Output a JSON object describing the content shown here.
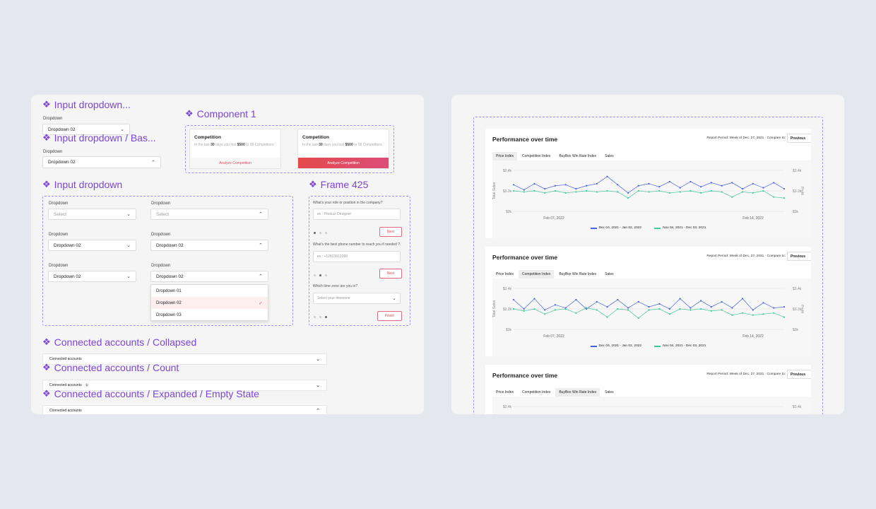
{
  "left_panel": {
    "sections": {
      "input_dropdown_collapsed": {
        "title": "Input dropdown...",
        "label": "Dropdown",
        "value": "Dropdown 02"
      },
      "input_dropdown_base": {
        "title": "Input dropdown / Bas...",
        "label": "Dropdown",
        "value": "Dropdown 02"
      },
      "component1": {
        "title": "Component 1",
        "cards": [
          {
            "title": "Competition",
            "pre": "In the last",
            "days": "30",
            "mid": "days you lost",
            "amount": "$500",
            "post": "to 08 Competitors",
            "button": "Analyze Competition"
          },
          {
            "title": "Competition",
            "pre": "In the last",
            "days": "30",
            "mid": "days you lost",
            "amount": "$500",
            "post": "to 08 Competitors",
            "button": "Analyze Competition"
          }
        ]
      },
      "input_dropdown": {
        "title": "Input dropdown",
        "label": "Dropdown",
        "placeholder": "Select",
        "value": "Dropdown 02",
        "options": [
          "Dropdown 01",
          "Dropdown 02",
          "Dropdown 03"
        ]
      },
      "frame425": {
        "title": "Frame 425",
        "q1": "What's your role or position in the company?",
        "q1_placeholder": "ex : Product Designer",
        "q2": "What's the best phone number to reach you if needed ?",
        "q2_placeholder": "ex : +12823912399",
        "q3": "Which time zone are you in?",
        "q3_placeholder": "Select your timezone",
        "next": "Next",
        "finish": "Finish"
      },
      "connected_collapsed": {
        "title": "Connected accounts / Collapsed",
        "label": "Connected accounts"
      },
      "connected_count": {
        "title": "Connected accounts / Count",
        "label": "Connected accounts",
        "count": "1"
      },
      "connected_expanded": {
        "title": "Connected accounts / Expanded / Empty State",
        "label": "Connected accounts"
      }
    }
  },
  "right_panel": {
    "common": {
      "title": "Performance over time",
      "report_period": "Report Period: Week of Dec. 27, 2021 · Compare to:",
      "previous": "Previous",
      "tabs": [
        "Price Index",
        "Competition Index",
        "BuyBox Win Rate Index",
        "Sales"
      ],
      "y_left_label": "Total Sales",
      "y_right_label": "Profit",
      "y_left_ticks": [
        "$3.4k",
        "$3.2k",
        "$3k"
      ],
      "y_right_ticks": [
        "$3.4k",
        "$3.2k",
        "$3k"
      ],
      "x_ticks": [
        "Feb 07, 2022",
        "Feb 14, 2022"
      ],
      "series1_name": "Dec 04, 2021 - Jan 02, 2022",
      "series2_name": "Nov 04, 2021 - Dec 03, 2021",
      "colors": {
        "series1": "#4a63d8",
        "series2": "#45c79a"
      }
    },
    "charts": [
      {
        "active_tab": 0
      },
      {
        "active_tab": 1
      },
      {
        "active_tab": 2
      }
    ]
  },
  "chart_data": [
    {
      "type": "line",
      "ylim": [
        3.0,
        3.4
      ],
      "x_tick_labels": [
        "Feb 07, 2022",
        "Feb 14, 2022"
      ],
      "series": [
        {
          "name": "Dec 04, 2021 - Jan 02, 2022",
          "values": [
            3.26,
            3.21,
            3.27,
            3.22,
            3.25,
            3.26,
            3.22,
            3.25,
            3.27,
            3.34,
            3.26,
            3.18,
            3.25,
            3.27,
            3.24,
            3.29,
            3.23,
            3.29,
            3.24,
            3.28,
            3.25,
            3.28,
            3.22,
            3.27,
            3.23,
            3.28,
            3.22
          ]
        },
        {
          "name": "Nov 04, 2021 - Dec 03, 2021",
          "values": [
            3.2,
            3.19,
            3.2,
            3.18,
            3.2,
            3.18,
            3.19,
            3.2,
            3.19,
            3.2,
            3.19,
            3.13,
            3.2,
            3.19,
            3.2,
            3.18,
            3.19,
            3.2,
            3.18,
            3.2,
            3.19,
            3.14,
            3.19,
            3.18,
            3.2,
            3.14,
            3.13
          ]
        }
      ]
    },
    {
      "type": "line",
      "ylim": [
        3.0,
        3.4
      ],
      "x_tick_labels": [
        "Feb 07, 2022",
        "Feb 14, 2022"
      ],
      "series": [
        {
          "name": "Dec 04, 2021 - Jan 02, 2022",
          "values": [
            3.29,
            3.2,
            3.3,
            3.19,
            3.24,
            3.21,
            3.29,
            3.2,
            3.27,
            3.22,
            3.29,
            3.21,
            3.27,
            3.22,
            3.25,
            3.2,
            3.3,
            3.21,
            3.28,
            3.22,
            3.27,
            3.21,
            3.3,
            3.19,
            3.26,
            3.21,
            3.22
          ]
        },
        {
          "name": "Nov 04, 2021 - Dec 03, 2021",
          "values": [
            3.2,
            3.18,
            3.2,
            3.15,
            3.19,
            3.2,
            3.16,
            3.21,
            3.19,
            3.12,
            3.2,
            3.19,
            3.11,
            3.19,
            3.2,
            3.15,
            3.2,
            3.19,
            3.2,
            3.18,
            3.19,
            3.14,
            3.16,
            3.14,
            3.15,
            3.16,
            3.12
          ]
        }
      ]
    },
    {
      "type": "line",
      "ylim": [
        3.0,
        3.4
      ],
      "series": []
    }
  ]
}
